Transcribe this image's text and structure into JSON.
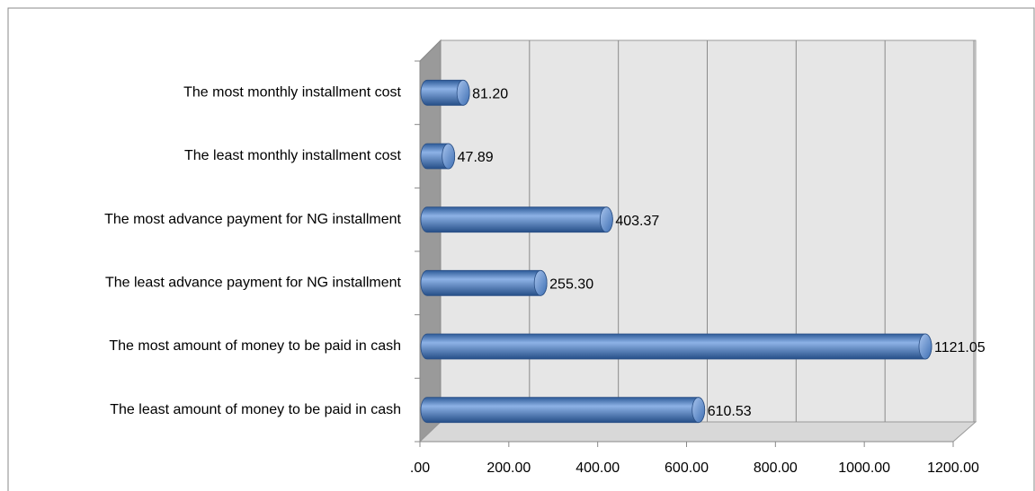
{
  "chart_data": {
    "type": "bar",
    "orientation": "horizontal",
    "categories": [
      "The most monthly  installment cost",
      "The least monthly  installment cost",
      "The most advance payment for NG installment",
      "The least advance payment for NG installment",
      "The most amount of money to be paid in cash",
      "The least amount of money to be paid in cash"
    ],
    "values": [
      81.2,
      47.89,
      403.37,
      255.3,
      1121.05,
      610.53
    ],
    "value_labels": [
      "81.20",
      "47.89",
      "403.37",
      "255.30",
      "1121.05",
      "610.53"
    ],
    "color": "#4a7cc4",
    "xlim": [
      0,
      1200
    ],
    "xticks": [
      {
        "value": 0,
        "label": ".00"
      },
      {
        "value": 200,
        "label": "200.00"
      },
      {
        "value": 400,
        "label": "400.00"
      },
      {
        "value": 600,
        "label": "600.00"
      },
      {
        "value": 800,
        "label": "800.00"
      },
      {
        "value": 1000,
        "label": "1000.00"
      },
      {
        "value": 1200,
        "label": "1200.00"
      }
    ],
    "grid": true
  }
}
